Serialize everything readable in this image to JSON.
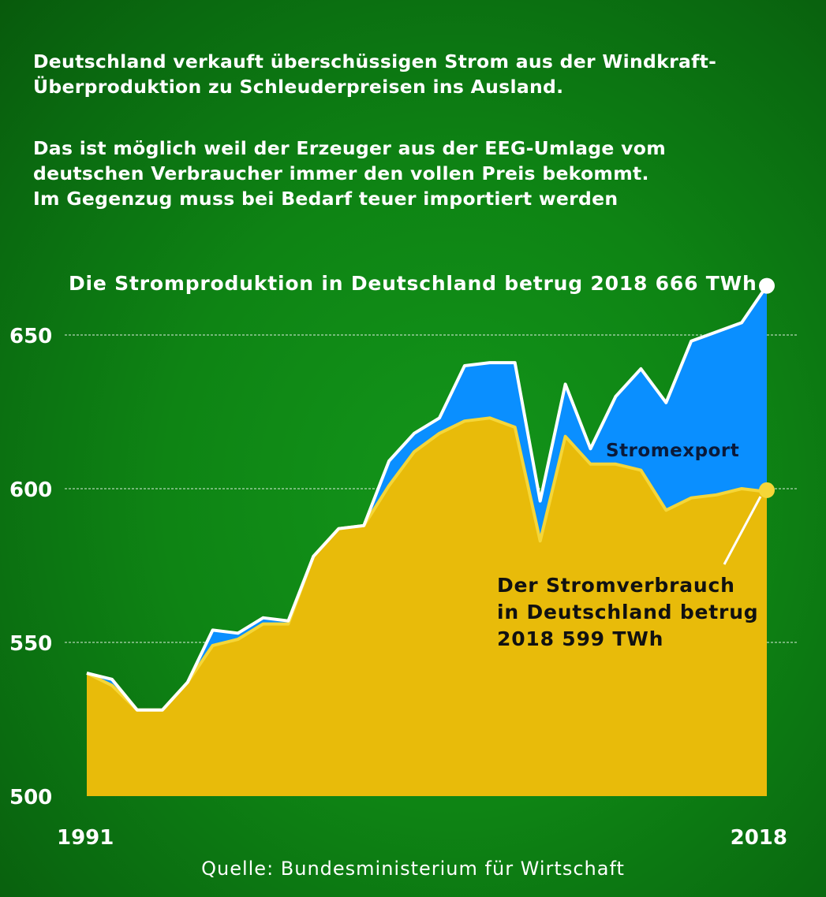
{
  "intro": [
    "Deutschland verkauft überschüssigen Strom aus der Windkraft-",
    "Überproduktion zu Schleuderpreisen ins Ausland.",
    "Das ist möglich weil der Erzeuger aus der EEG-Umlage vom",
    "deutschen Verbraucher immer den vollen Preis bekommt.",
    "Im Gegenzug muss bei Bedarf teuer importiert werden"
  ],
  "source": "Quelle: Bundesministerium für Wirtschaft",
  "colors": {
    "background": "#0e8414",
    "export": "#0a8fff",
    "consumption": "#e8bb0a",
    "production_line": "#ffffff",
    "consumption_line": "#f5d638"
  },
  "chart_data": {
    "type": "area",
    "x": [
      1991,
      1992,
      1993,
      1994,
      1995,
      1996,
      1997,
      1998,
      1999,
      2000,
      2001,
      2002,
      2003,
      2004,
      2005,
      2006,
      2007,
      2008,
      2009,
      2010,
      2011,
      2012,
      2013,
      2014,
      2015,
      2016,
      2017,
      2018
    ],
    "series": [
      {
        "name": "Stromproduktion",
        "values": [
          540,
          538,
          528,
          528,
          537,
          554,
          553,
          558,
          557,
          578,
          587,
          588,
          609,
          618,
          623,
          640,
          641,
          641,
          596,
          634,
          613,
          630,
          639,
          628,
          648,
          651,
          654,
          666
        ]
      },
      {
        "name": "Stromexport",
        "values": [
          0,
          2,
          0,
          0,
          0,
          5,
          2,
          2,
          1,
          0,
          0,
          0,
          8,
          6,
          5,
          18,
          18,
          21,
          13,
          17,
          5,
          22,
          33,
          35,
          51,
          53,
          54,
          67
        ]
      },
      {
        "name": "Stromverbrauch",
        "values": [
          540,
          536,
          528,
          528,
          537,
          549,
          551,
          556,
          556,
          578,
          587,
          588,
          601,
          612,
          618,
          622,
          623,
          620,
          583,
          617,
          608,
          608,
          606,
          593,
          597,
          598,
          600,
          599
        ]
      }
    ],
    "ylim": [
      500,
      666
    ],
    "yticks": [
      500,
      550,
      600,
      650
    ],
    "xtick_labels": [
      "1991",
      "2018"
    ],
    "grid": "horizontal-dashed",
    "annotations": {
      "production": "Die Stromproduktion in Deutschland betrug 2018 666 TWh",
      "consumption": [
        "Der Stromverbrauch",
        "in Deutschland betrug",
        "2018 599 TWh"
      ]
    }
  }
}
